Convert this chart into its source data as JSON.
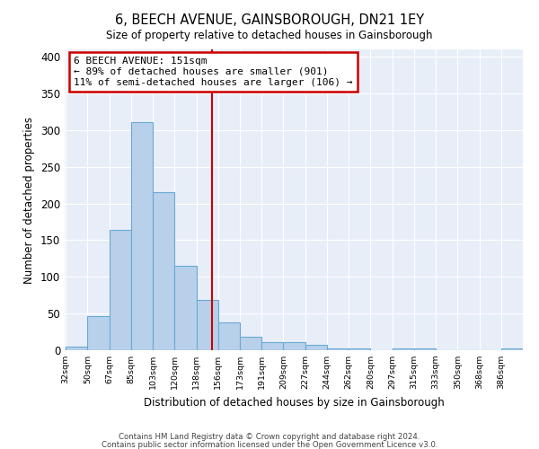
{
  "title": "6, BEECH AVENUE, GAINSBOROUGH, DN21 1EY",
  "subtitle": "Size of property relative to detached houses in Gainsborough",
  "xlabel": "Distribution of detached houses by size in Gainsborough",
  "ylabel": "Number of detached properties",
  "bin_labels": [
    "32sqm",
    "50sqm",
    "67sqm",
    "85sqm",
    "103sqm",
    "120sqm",
    "138sqm",
    "156sqm",
    "173sqm",
    "191sqm",
    "209sqm",
    "227sqm",
    "244sqm",
    "262sqm",
    "280sqm",
    "297sqm",
    "315sqm",
    "333sqm",
    "350sqm",
    "368sqm",
    "386sqm"
  ],
  "bar_values": [
    5,
    46,
    164,
    311,
    215,
    115,
    68,
    38,
    18,
    11,
    11,
    7,
    2,
    2,
    0,
    3,
    3,
    0,
    0,
    0,
    3
  ],
  "bar_color": "#b8d0ea",
  "bar_edge_color": "#6aaad4",
  "background_color": "#e8eef8",
  "grid_color": "#ffffff",
  "vline_color": "#cc0000",
  "annotation_line1": "6 BEECH AVENUE: 151sqm",
  "annotation_line2": "← 89% of detached houses are smaller (901)",
  "annotation_line3": "11% of semi-detached houses are larger (106) →",
  "annotation_box_color": "#cc0000",
  "ylim": [
    0,
    410
  ],
  "yticks": [
    0,
    50,
    100,
    150,
    200,
    250,
    300,
    350,
    400
  ],
  "footnote1": "Contains HM Land Registry data © Crown copyright and database right 2024.",
  "footnote2": "Contains public sector information licensed under the Open Government Licence v3.0."
}
